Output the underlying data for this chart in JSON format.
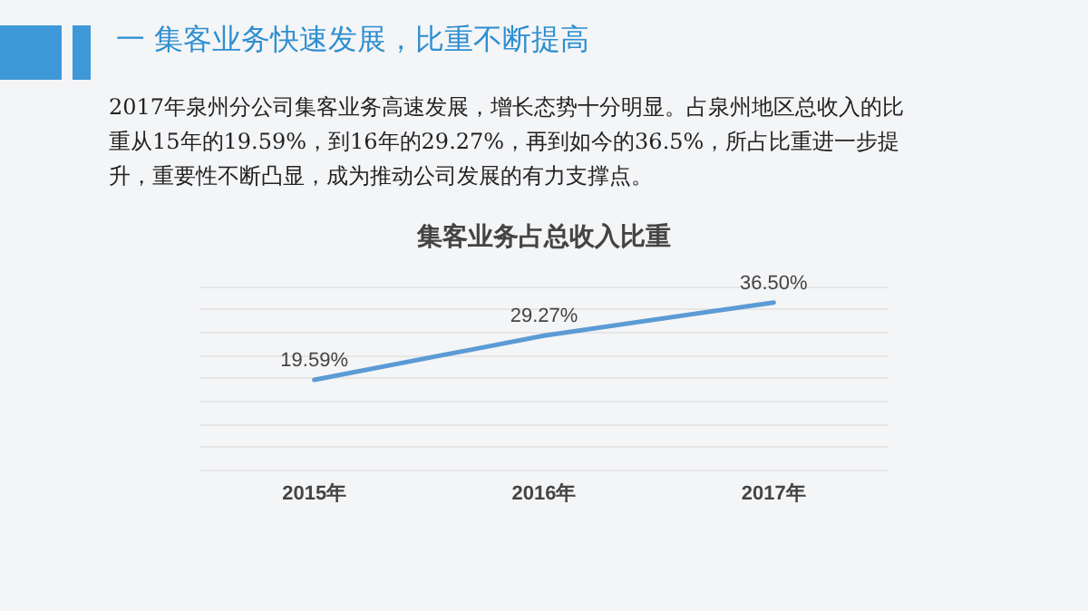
{
  "chart_data": {
    "type": "line",
    "title": "集客业务占总收入比重",
    "subtitle": "2017年泉州分公司集客业务高速发展，增长态势十分明显。占泉州地区总收入的比重从15年的19.59%，到16年的29.27%，再到如今的36.5%，所占比重进一步提升，重要性不断凸显，成为推动公司发展的有力支撑点。",
    "annotations": [
      "一  集客业务快速发展，比重不断提高"
    ],
    "categories": [
      "2015年",
      "2016年",
      "2017年"
    ],
    "series": [
      {
        "color": "#5b9bd5",
        "values": [
          19.59,
          29.27,
          36.5
        ],
        "value_labels": [
          "19.59%",
          "29.27%",
          "36.50%"
        ]
      }
    ],
    "ylim": [
      0,
      40
    ],
    "yticks": [
      {
        "value": 0,
        "label": null
      },
      {
        "value": 5,
        "label": null
      },
      {
        "value": 10,
        "label": null
      },
      {
        "value": 15,
        "label": null
      },
      {
        "value": 20,
        "label": null
      },
      {
        "value": 25,
        "label": null
      },
      {
        "value": 30,
        "label": null
      },
      {
        "value": 35,
        "label": null
      },
      {
        "value": 40,
        "label": null
      }
    ],
    "tick_labels": "x",
    "grid": "y",
    "marker": "none",
    "line_style": "solid"
  }
}
